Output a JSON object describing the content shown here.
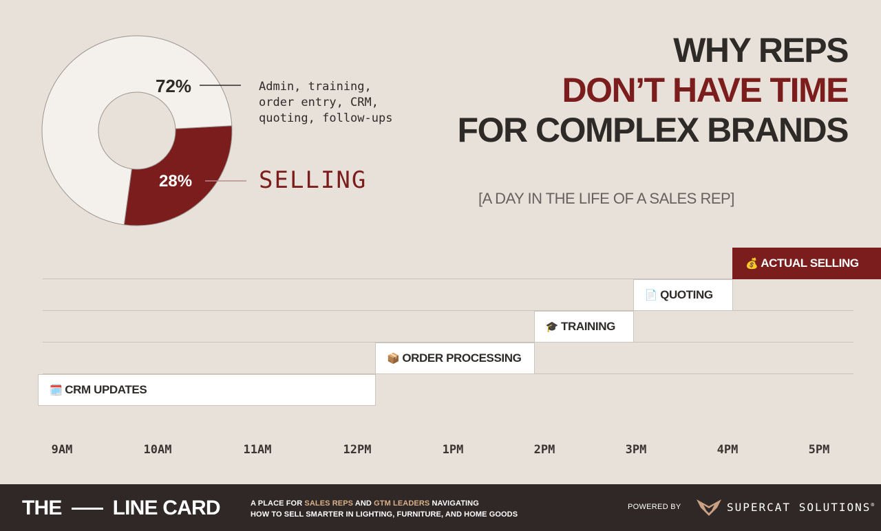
{
  "title": {
    "line1": "WHY REPS",
    "line2": "DON’T HAVE TIME",
    "line3": "FOR COMPLEX BRANDS"
  },
  "subtitle": "[A DAY IN THE LIFE OF A SALES REP]",
  "colors": {
    "background": "#e8e1d9",
    "accent": "#7b1d1d",
    "text": "#2e2a28",
    "footer": "#2f2826",
    "highlight": "#d9b08a"
  },
  "chart_data": [
    {
      "type": "pie",
      "variant": "donut",
      "slices": [
        {
          "label": "72%",
          "value": 72,
          "description": "Admin, training,\norder entry, CRM,\nquoting, follow-ups",
          "color": "#f4f0eb"
        },
        {
          "label": "28%",
          "value": 28,
          "description": "SELLING",
          "color": "#7b1d1d"
        }
      ]
    },
    {
      "type": "gantt",
      "x_ticks": [
        "9AM",
        "10AM",
        "11AM",
        "12PM",
        "1PM",
        "2PM",
        "3PM",
        "4PM",
        "5PM"
      ],
      "tasks": [
        {
          "label": "CRM UPDATES",
          "icon": "🗓️",
          "icon_name": "calendar-icon",
          "start": 0,
          "end": 3.4,
          "highlight": false
        },
        {
          "label": "ORDER PROCESSING",
          "icon": "📦",
          "icon_name": "package-icon",
          "start": 3.4,
          "end": 5,
          "highlight": false
        },
        {
          "label": "TRAINING",
          "icon": "🎓",
          "icon_name": "graduation-cap-icon",
          "start": 5,
          "end": 6,
          "highlight": false
        },
        {
          "label": "QUOTING",
          "icon": "📄",
          "icon_name": "document-icon",
          "start": 6,
          "end": 7,
          "highlight": false
        },
        {
          "label": "ACTUAL SELLING",
          "icon": "💰",
          "icon_name": "money-bag-icon",
          "start": 7,
          "end": 8,
          "highlight": true
        }
      ]
    }
  ],
  "footer": {
    "brand_left": "THE",
    "brand_right": "LINE CARD",
    "tagline": {
      "t1": "A PLACE FOR ",
      "h1": "SALES REPS",
      "t2": " AND ",
      "h2": "GTM LEADERS",
      "t3": " NAVIGATING",
      "line2": "HOW TO SELL SMARTER IN LIGHTING, FURNITURE, AND HOME GOODS"
    },
    "powered_by": "POWERED BY",
    "company": "SUPERCAT SOLUTIONS",
    "trademark": "®"
  }
}
